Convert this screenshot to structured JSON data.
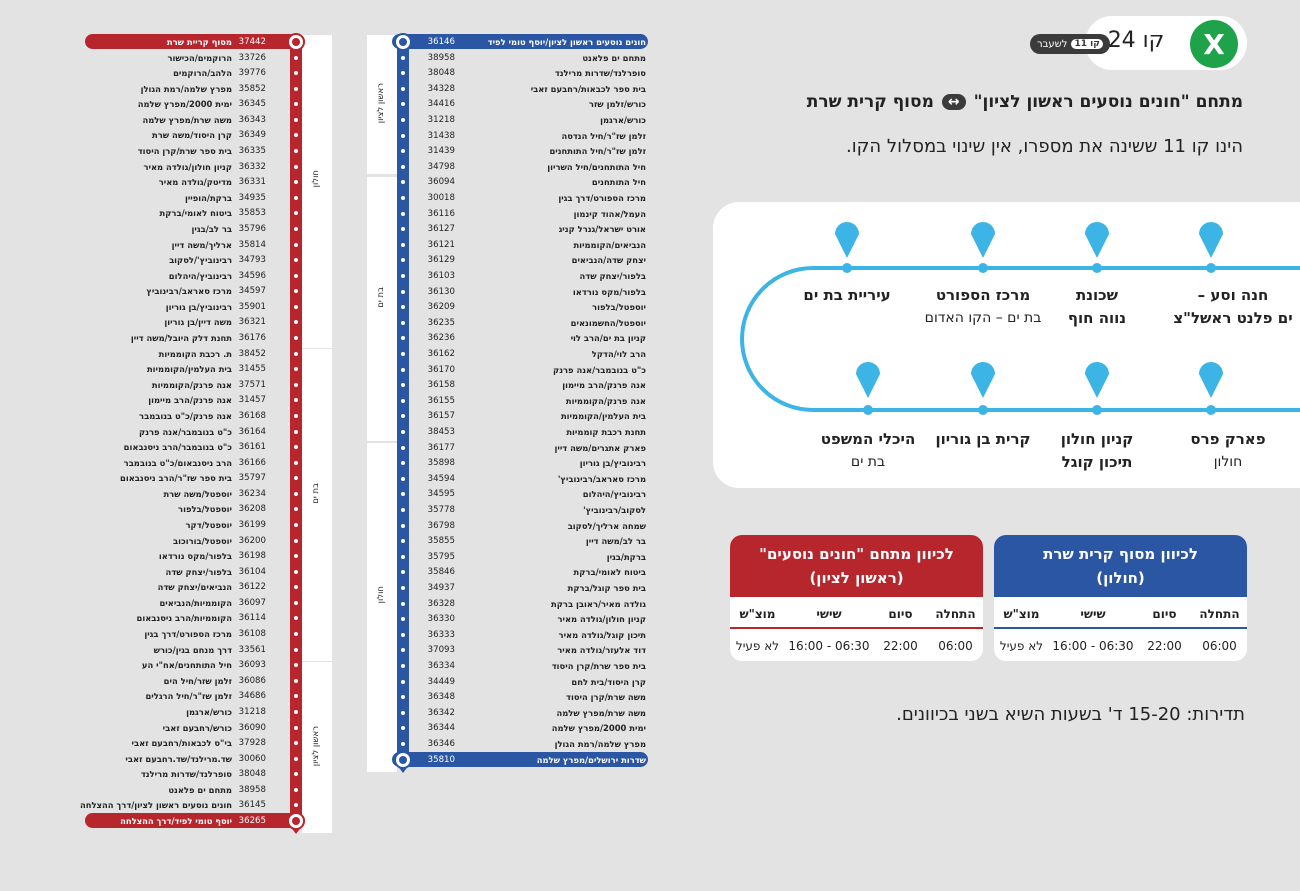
{
  "header": {
    "line_label": "קו 24",
    "logo_mark": "X",
    "badge_text": "לשעבר",
    "badge_inner": "קו 11",
    "route_from": "מתחם \"חונים נוסעים ראשון לציון\"",
    "route_arrow": "↔",
    "route_to": "מסוף קרית שרת",
    "subtitle": "הינו קו 11 ששינה את מספרו, אין שינוי במסלול הקו."
  },
  "map": {
    "top_labels": [
      {
        "bold": "חנה וסע –",
        "sub": "",
        "bold2": "ים פלנט ראשל\"צ"
      },
      {
        "bold": "שכונת",
        "sub": "",
        "bold2": "נווה חוף"
      },
      {
        "bold": "מרכז הספורט",
        "sub": "בת ים – הקו האדום",
        "bold2": ""
      },
      {
        "bold": "עיריית בת ים",
        "sub": "",
        "bold2": ""
      }
    ],
    "bottom_labels": [
      {
        "bold": "פארק פרס",
        "sub": "חולון",
        "bold2": ""
      },
      {
        "bold": "קניון חולון",
        "sub": "",
        "bold2": "תיכון קוגל"
      },
      {
        "bold": "קרית בן גוריון",
        "sub": "",
        "bold2": ""
      },
      {
        "bold": "היכלי המשפט",
        "sub": "בת ים",
        "bold2": ""
      }
    ],
    "line_color": "#3cb4e6"
  },
  "tables": [
    {
      "title": "לכיוון מסוף קרית שרת",
      "title2": "(חולון)",
      "color": "#2a56a3",
      "cols": [
        "התחלה",
        "סיום",
        "שישי",
        "מוצ\"ש"
      ],
      "vals": [
        "06:00",
        "22:00",
        "06:30 - 16:00",
        "לא פעיל"
      ]
    },
    {
      "title": "לכיוון מתחם \"חונים נוסעים\"",
      "title2": "(ראשון לציון)",
      "color": "#b8262d",
      "cols": [
        "התחלה",
        "סיום",
        "שישי",
        "מוצ\"ש"
      ],
      "vals": [
        "06:00",
        "22:00",
        "06:30 - 16:00",
        "לא פעיל"
      ]
    }
  ],
  "frequency": "תדירות: 15-20 ד' בשעות השיא בשני בכיוונים.",
  "colors": {
    "red": "#b8262d",
    "blue": "#2a56a3"
  },
  "blue_list": {
    "zones": [
      "ראשון לציון",
      "בת ים",
      "חולון"
    ],
    "stops": [
      {
        "num": "36146",
        "name": "חונים נוסעים ראשון לציון/יוסף טומי לפיד"
      },
      {
        "num": "38958",
        "name": "מתחם ים פלאנט"
      },
      {
        "num": "38048",
        "name": "סופרלנד/שדרות מרילנד"
      },
      {
        "num": "34328",
        "name": "בית ספר לכבאות/רחבעם זאבי"
      },
      {
        "num": "34416",
        "name": "כורש/זלמן שזר"
      },
      {
        "num": "31218",
        "name": "כורש/ארגמן"
      },
      {
        "num": "31438",
        "name": "זלמן שז\"ר/חיל הנדסה"
      },
      {
        "num": "31439",
        "name": "זלמן שז\"ר/חיל התותחנים"
      },
      {
        "num": "34798",
        "name": "חיל התותחנים/חיל השריון"
      },
      {
        "num": "36094",
        "name": "חיל התותחנים"
      },
      {
        "num": "30018",
        "name": "מרכז הספורט/דרך בגין"
      },
      {
        "num": "36116",
        "name": "העמל/אהוד קינמון"
      },
      {
        "num": "36127",
        "name": "אורט ישראל/גנרל קניג"
      },
      {
        "num": "36121",
        "name": "הנביאים/הקוממיות"
      },
      {
        "num": "36129",
        "name": "יצחק שדה/הנביאים"
      },
      {
        "num": "36103",
        "name": "בלפור/יצחק שדה"
      },
      {
        "num": "36130",
        "name": "בלפור/מקס נורדאו"
      },
      {
        "num": "36209",
        "name": "יוספטל/בלפור"
      },
      {
        "num": "36235",
        "name": "יוספטל/החשמונאים"
      },
      {
        "num": "36236",
        "name": "קניון בת ים/הרב לוי"
      },
      {
        "num": "36162",
        "name": "הרב לוי/הדקל"
      },
      {
        "num": "36170",
        "name": "כ\"ט בנובמבר/אנה פרנק"
      },
      {
        "num": "36158",
        "name": "אנה פרנק/הרב מיימון"
      },
      {
        "num": "36155",
        "name": "אנה פרנק/הקוממיות"
      },
      {
        "num": "36157",
        "name": "בית העלמין/הקוממיות"
      },
      {
        "num": "38453",
        "name": "תחנת רכבת קוממיות"
      },
      {
        "num": "36177",
        "name": "פארק אתגרים/משה דיין"
      },
      {
        "num": "35898",
        "name": "רבינוביץ/בן גוריון"
      },
      {
        "num": "34594",
        "name": "מרכז סאראב/רבינוביץ'"
      },
      {
        "num": "34595",
        "name": "רבינוביץ/היהלום"
      },
      {
        "num": "35778",
        "name": "לסקוב/רבינוביץ'"
      },
      {
        "num": "36798",
        "name": "שמחה ארליך/לסקוב"
      },
      {
        "num": "35855",
        "name": "בר לב/משה דיין"
      },
      {
        "num": "35795",
        "name": "ברקת/בגין"
      },
      {
        "num": "35846",
        "name": "ביטוח לאומי/ברקת"
      },
      {
        "num": "34937",
        "name": "בית ספר קוגל/ברקת"
      },
      {
        "num": "36328",
        "name": "גולדה מאיר/ראובן ברקת"
      },
      {
        "num": "36330",
        "name": "קניון חולון/גולדה מאיר"
      },
      {
        "num": "36333",
        "name": "תיכון קוגל/גולדה מאיר"
      },
      {
        "num": "37093",
        "name": "דוד אלעזר/גולדה מאיר"
      },
      {
        "num": "36334",
        "name": "בית ספר שרת/קרן היסוד"
      },
      {
        "num": "34449",
        "name": "קרן היסוד/בית לחם"
      },
      {
        "num": "36348",
        "name": "משה שרת/קרן היסוד"
      },
      {
        "num": "36342",
        "name": "משה שרת/מפרץ שלמה"
      },
      {
        "num": "36344",
        "name": "ימית 2000/מפרץ שלמה"
      },
      {
        "num": "36346",
        "name": "מפרץ שלמה/רמת הגולן"
      },
      {
        "num": "35810",
        "name": "שדרות ירושלים/מפרץ שלמה"
      }
    ]
  },
  "red_list": {
    "zones": [
      "חולון",
      "בת ים",
      "ראשון לציון"
    ],
    "stops": [
      {
        "num": "37442",
        "name": "מסוף קריית שרת"
      },
      {
        "num": "33726",
        "name": "הרוקמים/הכישור"
      },
      {
        "num": "39776",
        "name": "הלהב/הרוקמים"
      },
      {
        "num": "35852",
        "name": "מפרץ שלמה/רמת הגולן"
      },
      {
        "num": "36345",
        "name": "ימית 2000/מפרץ שלמה"
      },
      {
        "num": "36343",
        "name": "משה שרת/מפרץ שלמה"
      },
      {
        "num": "36349",
        "name": "קרן היסוד/משה שרת"
      },
      {
        "num": "36335",
        "name": "בית ספר שרת/קרן היסוד"
      },
      {
        "num": "36332",
        "name": "קניון חולון/גולדה מאיר"
      },
      {
        "num": "36331",
        "name": "מדיטק/גולדה מאיר"
      },
      {
        "num": "34935",
        "name": "ברקת/הופיין"
      },
      {
        "num": "35853",
        "name": "ביטוח לאומי/ברקת"
      },
      {
        "num": "35796",
        "name": "בר לב/בגין"
      },
      {
        "num": "35814",
        "name": "ארליך/משה דיין"
      },
      {
        "num": "34793",
        "name": "רבינוביץ'/לסקוב"
      },
      {
        "num": "34596",
        "name": "רבינוביץ/היהלום"
      },
      {
        "num": "34597",
        "name": "מרכז סאראב/רבינוביץ"
      },
      {
        "num": "35901",
        "name": "רבינוביץ/בן גוריון"
      },
      {
        "num": "36321",
        "name": "משה דיין/בן גוריון"
      },
      {
        "num": "36176",
        "name": "תחנת דלק היובל/משה דיין"
      },
      {
        "num": "38452",
        "name": "ת. רכבת הקוממיות"
      },
      {
        "num": "31455",
        "name": "בית העלמין/הקוממיות"
      },
      {
        "num": "37571",
        "name": "אנה פרנק/הקוממיות"
      },
      {
        "num": "31457",
        "name": "אנה פרנק/הרב מיימון"
      },
      {
        "num": "36168",
        "name": "אנה פרנק/כ\"ט בנובמבר"
      },
      {
        "num": "36164",
        "name": "כ\"ט בנובמבר/אנה פרנק"
      },
      {
        "num": "36161",
        "name": "כ\"ט בנובמבר/הרב ניסנבאום"
      },
      {
        "num": "36166",
        "name": "הרב ניסנבאום/כ\"ט בנובמבר"
      },
      {
        "num": "35797",
        "name": "בית ספר שז\"ר/הרב ניסנבאום"
      },
      {
        "num": "36234",
        "name": "יוספטל/משה שרת"
      },
      {
        "num": "36208",
        "name": "יוספטל/בלפור"
      },
      {
        "num": "36199",
        "name": "יוספטל/דקר"
      },
      {
        "num": "36200",
        "name": "יוספטל/בורוכוב"
      },
      {
        "num": "36198",
        "name": "בלפור/מקס נורדאו"
      },
      {
        "num": "36104",
        "name": "בלפור/יצחק שדה"
      },
      {
        "num": "36122",
        "name": "הנביאים/יצחק שדה"
      },
      {
        "num": "36097",
        "name": "הקוממיות/הנביאים"
      },
      {
        "num": "36114",
        "name": "הקוממיות/הרב ניסנבאום"
      },
      {
        "num": "36108",
        "name": "מרכז הספורט/דרך בגין"
      },
      {
        "num": "33561",
        "name": "דרך מנחם בגין/כורש"
      },
      {
        "num": "36093",
        "name": "חיל התותחנים/אח\"י הע"
      },
      {
        "num": "36086",
        "name": "זלמן שזר/חיל הים"
      },
      {
        "num": "34686",
        "name": "זלמן שז\"ר/חיל הרגלים"
      },
      {
        "num": "31218",
        "name": "כורש/ארגמן"
      },
      {
        "num": "36090",
        "name": "כורש/רחבעם זאבי"
      },
      {
        "num": "37928",
        "name": "בי\"ס לכבאות/רחבעם זאבי"
      },
      {
        "num": "30060",
        "name": "שד.מרילנד/שד.רחבעם זאבי"
      },
      {
        "num": "38048",
        "name": "סופרלנד/שדרות מרילנד"
      },
      {
        "num": "38958",
        "name": "מתחם ים פלאנט"
      },
      {
        "num": "36145",
        "name": "חונים נוסעים ראשון לציון/דרך ההצלחה"
      },
      {
        "num": "36265",
        "name": "יוסף טומי לפיד/דרך ההצלחה"
      }
    ]
  }
}
